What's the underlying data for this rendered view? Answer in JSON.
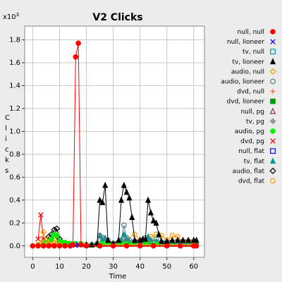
{
  "chart_data": {
    "type": "line",
    "title": "V2 Clicks",
    "xlabel": "Time",
    "ylabel": "Clicks",
    "y_multiplier_label": "x10",
    "y_multiplier_exp": "3",
    "xlim": [
      -3,
      64
    ],
    "ylim": [
      -0.1,
      1.92
    ],
    "x_ticks": [
      0,
      10,
      20,
      30,
      40,
      50,
      60
    ],
    "x_tick_labels": [
      "0",
      "10",
      "20",
      "30",
      "40",
      "50",
      "60"
    ],
    "y_ticks": [
      0.0,
      0.2,
      0.4,
      0.6,
      0.8,
      1.0,
      1.2,
      1.4,
      1.6,
      1.8
    ],
    "y_tick_labels": [
      "0.0",
      "0.2",
      "0.4",
      "0.6",
      "0.8",
      "1.0",
      "1.2",
      "1.4",
      "1.6",
      "1.8"
    ],
    "grid": true,
    "legend_placement": "right",
    "series": [
      {
        "name": "null, null",
        "color": "#ff0000",
        "marker": "circle-filled",
        "connected": true,
        "x": [
          0,
          2,
          4,
          6,
          8,
          10,
          12,
          14,
          15,
          16,
          17,
          18,
          20,
          25,
          30,
          35,
          40,
          45,
          50,
          55,
          60,
          61
        ],
        "y": [
          0,
          0,
          0,
          0,
          0,
          0,
          0,
          0,
          0.01,
          1.65,
          1.77,
          0.01,
          0,
          0,
          0,
          0,
          0,
          0,
          0,
          0,
          0,
          0
        ]
      },
      {
        "name": "null, lioneer",
        "color": "#0000ff",
        "marker": "x",
        "connected": false,
        "x": [
          16,
          17
        ],
        "y": [
          0.005,
          0.01
        ]
      },
      {
        "name": "tv, null",
        "color": "#009999",
        "marker": "square-open",
        "connected": false,
        "x": [],
        "y": []
      },
      {
        "name": "tv, lioneer",
        "color": "#000000",
        "marker": "triangle-filled",
        "connected": true,
        "x": [
          20,
          22,
          24,
          25,
          26,
          27,
          28,
          30,
          32,
          33,
          34,
          35,
          36,
          37,
          38,
          40,
          41,
          42,
          43,
          44,
          45,
          46,
          47,
          48,
          50,
          52,
          54,
          56,
          58,
          60,
          61
        ],
        "y": [
          0.01,
          0.01,
          0.02,
          0.4,
          0.38,
          0.53,
          0.05,
          0.02,
          0.05,
          0.4,
          0.53,
          0.47,
          0.42,
          0.25,
          0.05,
          0.05,
          0.06,
          0.06,
          0.4,
          0.29,
          0.22,
          0.2,
          0.1,
          0.04,
          0.04,
          0.05,
          0.05,
          0.05,
          0.05,
          0.05,
          0.05
        ]
      },
      {
        "name": "audio, null",
        "color": "#ff9900",
        "marker": "diamond-open",
        "connected": true,
        "x": [
          2,
          3,
          4,
          5,
          6,
          8,
          10,
          20,
          30,
          40,
          50,
          60
        ],
        "y": [
          0.01,
          0.02,
          0.12,
          0.05,
          0.02,
          0.02,
          0.01,
          0.01,
          0.01,
          0.01,
          0.01,
          0.01
        ]
      },
      {
        "name": "audio, lioneer",
        "color": "#4d8080",
        "marker": "circle-open",
        "connected": true,
        "x": [
          20,
          22,
          24,
          25,
          26,
          28,
          30,
          32,
          33,
          34,
          35,
          36,
          38,
          40,
          41,
          42,
          44,
          46,
          48,
          50,
          52,
          54,
          56,
          58,
          60
        ],
        "y": [
          0.01,
          0.01,
          0.02,
          0.09,
          0.07,
          0.05,
          0.02,
          0.03,
          0.05,
          0.18,
          0.07,
          0.05,
          0.04,
          0.03,
          0.03,
          0.07,
          0.04,
          0.06,
          0.03,
          0.03,
          0.02,
          0.02,
          0.02,
          0.02,
          0.02
        ]
      },
      {
        "name": "dvd, null",
        "color": "#ff6633",
        "marker": "plus",
        "connected": false,
        "x": [],
        "y": []
      },
      {
        "name": "dvd, lioneer",
        "color": "#009900",
        "marker": "square-filled",
        "connected": false,
        "x": [],
        "y": []
      },
      {
        "name": "null, pg",
        "color": "#993333",
        "marker": "triangle-open",
        "connected": false,
        "x": [],
        "y": []
      },
      {
        "name": "tv, pg",
        "color": "#999999",
        "marker": "diamond-filled",
        "connected": false,
        "x": [],
        "y": []
      },
      {
        "name": "audio, pg",
        "color": "#00ee00",
        "marker": "circle-filled",
        "connected": true,
        "x": [
          0,
          2,
          4,
          5,
          6,
          7,
          8,
          9,
          10,
          11,
          12,
          13,
          14,
          16,
          18,
          20,
          22,
          24,
          26,
          28,
          30,
          32,
          34,
          36,
          38,
          40,
          42,
          44,
          46,
          48,
          50,
          52,
          54,
          56,
          58,
          60,
          61
        ],
        "y": [
          0,
          0.01,
          0.02,
          0.03,
          0.04,
          0.06,
          0.1,
          0.09,
          0.04,
          0.03,
          0.03,
          0.02,
          0.02,
          0.02,
          0.02,
          0.01,
          0.01,
          0.01,
          0.02,
          0.02,
          0.02,
          0.02,
          0.02,
          0.02,
          0.02,
          0.02,
          0.02,
          0.02,
          0.02,
          0.02,
          0.02,
          0.02,
          0.02,
          0.02,
          0.02,
          0.02,
          0.02
        ]
      },
      {
        "name": "dvd, pg",
        "color": "#ff0000",
        "marker": "x",
        "connected": true,
        "x": [
          2,
          3,
          4,
          5,
          6,
          8,
          10
        ],
        "y": [
          0.06,
          0.27,
          0.06,
          0.02,
          0.01,
          0.01,
          0.01
        ]
      },
      {
        "name": "null, flat",
        "color": "#0000ff",
        "marker": "square-open",
        "connected": false,
        "x": [],
        "y": []
      },
      {
        "name": "tv, flat",
        "color": "#009999",
        "marker": "triangle-filled",
        "connected": true,
        "x": [
          20,
          24,
          25,
          26,
          27,
          30,
          33,
          34,
          35,
          36,
          40,
          42,
          43,
          44,
          46,
          50,
          55,
          60
        ],
        "y": [
          0.01,
          0.02,
          0.09,
          0.06,
          0.07,
          0.02,
          0.05,
          0.1,
          0.06,
          0.04,
          0.03,
          0.05,
          0.08,
          0.05,
          0.04,
          0.03,
          0.02,
          0.02
        ]
      },
      {
        "name": "audio, flat",
        "color": "#000000",
        "marker": "diamond-open",
        "connected": true,
        "x": [
          5,
          6,
          7,
          8,
          9,
          10,
          12
        ],
        "y": [
          0.02,
          0.08,
          0.1,
          0.14,
          0.15,
          0.06,
          0.02
        ]
      },
      {
        "name": "dvd, flat",
        "color": "#ff9900",
        "marker": "circle-open",
        "connected": true,
        "x": [
          4,
          6,
          8,
          10,
          12,
          14,
          20,
          25,
          30,
          35,
          38,
          40,
          44,
          46,
          48,
          50,
          52,
          54,
          56,
          58,
          60
        ],
        "y": [
          0.02,
          0.04,
          0.05,
          0.03,
          0.02,
          0.02,
          0.01,
          0.02,
          0.02,
          0.05,
          0.1,
          0.05,
          0.08,
          0.1,
          0.09,
          0.05,
          0.09,
          0.08,
          0.04,
          0.04,
          0.03
        ]
      }
    ]
  }
}
